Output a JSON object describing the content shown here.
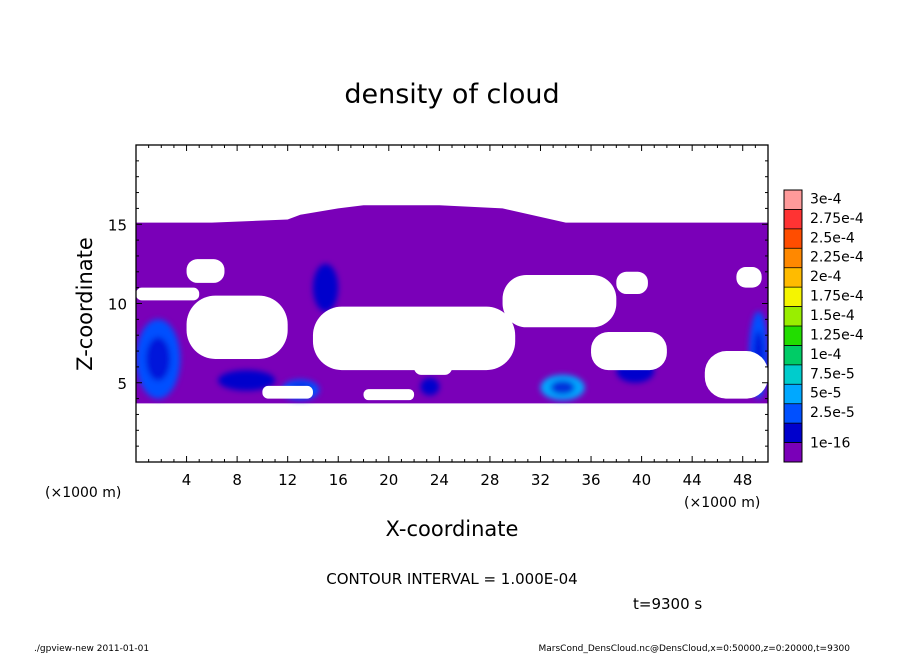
{
  "chart_data": {
    "type": "heatmap",
    "title": "density of cloud",
    "xlabel": "X-coordinate",
    "ylabel": "Z-coordinate",
    "x_unit_label": "(×1000 m)",
    "y_unit_label": "(×1000 m)",
    "xlim": [
      0,
      50
    ],
    "ylim": [
      0,
      20
    ],
    "x_ticks": [
      4,
      8,
      12,
      16,
      20,
      24,
      28,
      32,
      36,
      40,
      44,
      48
    ],
    "y_ticks": [
      5,
      10,
      15
    ],
    "contour_interval_text": "CONTOUR INTERVAL = 1.000E-04",
    "time_text": "t=9300 s",
    "colorbar": {
      "labels": [
        "3e-4",
        "2.75e-4",
        "2.5e-4",
        "2.25e-4",
        "2e-4",
        "1.75e-4",
        "1.5e-4",
        "1.25e-4",
        "1e-4",
        "7.5e-5",
        "5e-5",
        "2.5e-5",
        "1e-16"
      ],
      "colors": [
        "#ff9a9a",
        "#ff3333",
        "#ff4d00",
        "#ff8800",
        "#ffbb00",
        "#f5f500",
        "#99ee00",
        "#22dd00",
        "#00cc66",
        "#00cccc",
        "#00a8ff",
        "#0050ff",
        "#0000cc",
        "#7a00b8"
      ]
    },
    "cloud_base_color": "#7a00b8",
    "cloud_top_profile": {
      "x": [
        0,
        6,
        12,
        13,
        16,
        18,
        24,
        29,
        34,
        50
      ],
      "z": [
        15.1,
        15.1,
        15.3,
        15.6,
        16.0,
        16.2,
        16.2,
        16.0,
        15.1,
        15.1
      ]
    },
    "cloud_bottom_z": 3.7,
    "clear_regions": [
      {
        "x": [
          4,
          12
        ],
        "z": [
          6.5,
          10.5
        ]
      },
      {
        "x": [
          14,
          30
        ],
        "z": [
          5.8,
          9.8
        ]
      },
      {
        "x": [
          29,
          38
        ],
        "z": [
          8.5,
          11.8
        ]
      },
      {
        "x": [
          36,
          42
        ],
        "z": [
          5.8,
          8.2
        ]
      },
      {
        "x": [
          45,
          50
        ],
        "z": [
          4.0,
          7.0
        ]
      },
      {
        "x": [
          0,
          5
        ],
        "z": [
          10.2,
          11.0
        ]
      },
      {
        "x": [
          4,
          7
        ],
        "z": [
          11.3,
          12.8
        ]
      },
      {
        "x": [
          38,
          40.5
        ],
        "z": [
          10.6,
          12.0
        ]
      },
      {
        "x": [
          47.5,
          49.5
        ],
        "z": [
          11.0,
          12.3
        ]
      },
      {
        "x": [
          10,
          14
        ],
        "z": [
          4.0,
          4.8
        ]
      },
      {
        "x": [
          18,
          22
        ],
        "z": [
          3.9,
          4.6
        ]
      },
      {
        "x": [
          22,
          25
        ],
        "z": [
          5.5,
          6.5
        ]
      }
    ],
    "dense_regions": [
      {
        "x": [
          0,
          3.5
        ],
        "z": [
          4.0,
          9.0
        ],
        "level": "5e-5"
      },
      {
        "x": [
          48.5,
          50
        ],
        "z": [
          4.0,
          9.5
        ],
        "level": "5e-5"
      },
      {
        "x": [
          11.5,
          14.5
        ],
        "z": [
          3.9,
          5.2
        ],
        "level": "5e-5"
      },
      {
        "x": [
          32,
          35.5
        ],
        "z": [
          3.9,
          5.5
        ],
        "level": "7.5e-5"
      },
      {
        "x": [
          6.5,
          11
        ],
        "z": [
          4.5,
          5.8
        ],
        "level": "2.5e-5"
      },
      {
        "x": [
          14,
          16
        ],
        "z": [
          9.5,
          12.5
        ],
        "level": "2.5e-5"
      },
      {
        "x": [
          38,
          41
        ],
        "z": [
          5.0,
          6.5
        ],
        "level": "2.5e-5"
      },
      {
        "x": [
          22.5,
          24
        ],
        "z": [
          4.2,
          5.3
        ],
        "level": "2.5e-5"
      }
    ],
    "footer_left": "./gpview-new   2011-01-01",
    "footer_right": "MarsCond_DensCloud.nc@DensCloud,x=0:50000,z=0:20000,t=9300"
  }
}
